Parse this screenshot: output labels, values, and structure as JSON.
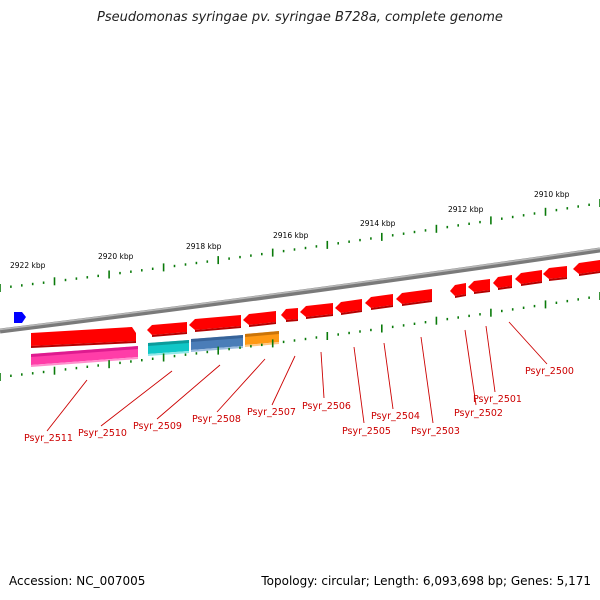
{
  "title": "Pseudomonas syringae pv. syringae B728a, complete genome",
  "footer": {
    "accession": "Accession: NC_007005",
    "summary": "Topology: circular; Length: 6,093,698 bp; Genes: 5,171"
  },
  "scale_labels": [
    "2922 kbp",
    "2920 kbp",
    "2918 kbp",
    "2916 kbp",
    "2914 kbp",
    "2912 kbp",
    "2910 kbp"
  ],
  "gene_labels": [
    "Psyr_2500",
    "Psyr_2501",
    "Psyr_2502",
    "Psyr_2503",
    "Psyr_2504",
    "Psyr_2505",
    "Psyr_2506",
    "Psyr_2507",
    "Psyr_2508",
    "Psyr_2509",
    "Psyr_2510",
    "Psyr_2511"
  ],
  "colors": {
    "gene": "#ff0000",
    "backbone": "#808080",
    "tick": "#0a7a0a",
    "marker": "#0000ff",
    "pink": "#ff3da8",
    "cyan": "#11c7c7",
    "steelblue": "#4a7db8",
    "orange": "#ff9914",
    "label": "#cc0000"
  }
}
